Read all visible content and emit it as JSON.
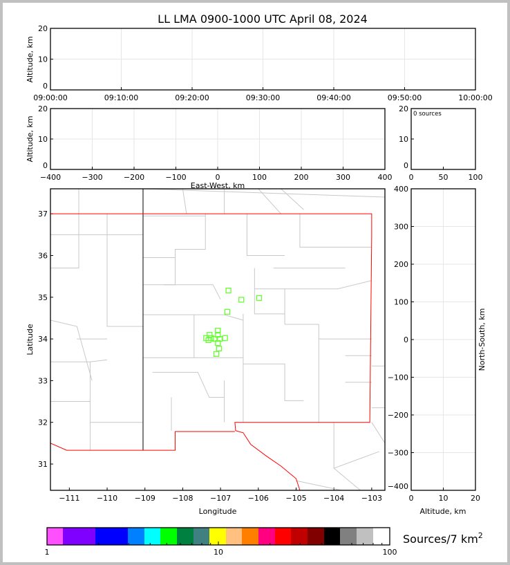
{
  "chart_data": [
    {
      "id": "time-height",
      "type": "scatter",
      "title": "LL LMA 0900-1000 UTC April 08, 2024",
      "xlabel": "",
      "ylabel": "Altitude, km",
      "x_ticks": [
        "09:00:00",
        "09:10:00",
        "09:20:00",
        "09:30:00",
        "09:40:00",
        "09:50:00",
        "10:00:00"
      ],
      "ylim": [
        0,
        20
      ],
      "y_ticks": [
        0,
        10,
        20
      ],
      "grid": true,
      "points": []
    },
    {
      "id": "ew-altitude",
      "type": "scatter",
      "xlabel": "East-West, km",
      "ylabel": "Altitude, km",
      "xlim": [
        -400,
        400
      ],
      "x_ticks": [
        -400,
        -300,
        -200,
        -100,
        0,
        100,
        200,
        300,
        400
      ],
      "ylim": [
        0,
        20
      ],
      "y_ticks": [
        0,
        10,
        20
      ],
      "grid": true,
      "points": []
    },
    {
      "id": "altitude-histogram",
      "type": "bar",
      "annotation": "0 sources",
      "xlim": [
        0,
        100
      ],
      "x_ticks": [
        0,
        50,
        100
      ],
      "ylim": [
        0,
        20
      ],
      "y_ticks": [
        0,
        10,
        20
      ],
      "values": []
    },
    {
      "id": "plan-view",
      "type": "scatter",
      "xlabel": "Longitude",
      "ylabel": "Latitude",
      "xlim": [
        -111.5,
        -102.65
      ],
      "x_ticks": [
        -111,
        -110,
        -109,
        -108,
        -107,
        -106,
        -105,
        -104,
        -103
      ],
      "ylim": [
        30.37,
        37.6
      ],
      "y_ticks": [
        31,
        32,
        33,
        34,
        35,
        36,
        37
      ],
      "marker_color": "#66ff33",
      "points": [
        {
          "lon": -106.79,
          "lat": 35.16
        },
        {
          "lon": -106.45,
          "lat": 34.94
        },
        {
          "lon": -105.98,
          "lat": 34.98
        },
        {
          "lon": -106.82,
          "lat": 34.65
        },
        {
          "lon": -107.07,
          "lat": 34.2
        },
        {
          "lon": -107.07,
          "lat": 34.1
        },
        {
          "lon": -107.29,
          "lat": 34.1
        },
        {
          "lon": -107.25,
          "lat": 34.02
        },
        {
          "lon": -107.38,
          "lat": 34.02
        },
        {
          "lon": -107.16,
          "lat": 34.0
        },
        {
          "lon": -107.02,
          "lat": 34.0
        },
        {
          "lon": -106.88,
          "lat": 34.02
        },
        {
          "lon": -107.32,
          "lat": 33.97
        },
        {
          "lon": -107.07,
          "lat": 33.9
        },
        {
          "lon": -107.04,
          "lat": 33.77
        },
        {
          "lon": -107.11,
          "lat": 33.64
        }
      ]
    },
    {
      "id": "ns-altitude",
      "type": "scatter",
      "xlabel": "Altitude, km",
      "ylabel": "North-South, km",
      "xlim": [
        0,
        20
      ],
      "x_ticks": [
        0,
        10,
        20
      ],
      "ylim": [
        -400,
        400
      ],
      "y_ticks": [
        -400,
        -300,
        -200,
        -100,
        0,
        100,
        200,
        300,
        400
      ],
      "grid": true,
      "points": []
    }
  ],
  "colorbar": {
    "label": "Sources/7 km",
    "label_sup": "2",
    "scale": "log",
    "tick_labels": [
      "1",
      "10",
      "100"
    ],
    "colors": [
      "#ff50ff",
      "#8000ff",
      "#0000ff",
      "#0080ff",
      "#00ffff",
      "#00ff00",
      "#008040",
      "#408080",
      "#ffff00",
      "#ffc080",
      "#ff8000",
      "#ff0080",
      "#ff0000",
      "#c00000",
      "#800000",
      "#000000",
      "#808080",
      "#c0c0c0",
      "#ffffff"
    ]
  }
}
